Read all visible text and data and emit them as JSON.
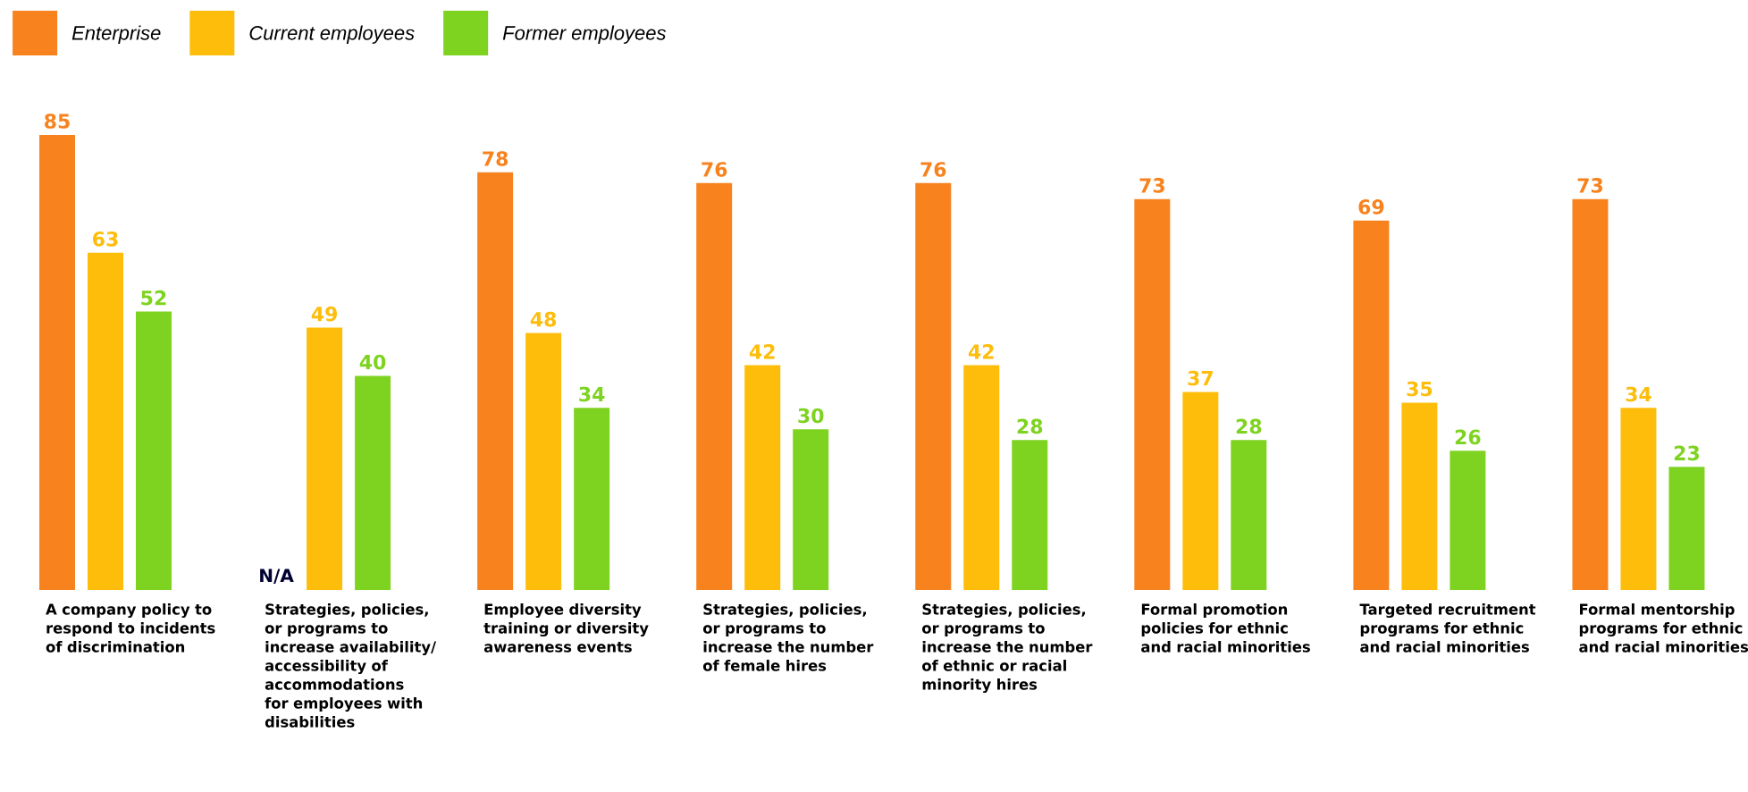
{
  "chart_data": {
    "type": "bar",
    "categories": [
      "A company policy to respond to incidents of discrimination",
      "Strategies, policies, or programs to increase availability/ accessibility of accommodations for employees with disabilities",
      "Employee diversity training or diversity awareness events",
      "Strategies, policies, or programs to increase the number of female hires",
      "Strategies, policies, or programs to increase the number of ethnic or racial minority hires",
      "Formal promotion policies for ethnic and racial minorities",
      "Targeted recruitment programs for ethnic and racial minorities",
      "Formal mentorship programs for ethnic and racial minorities"
    ],
    "series": [
      {
        "name": "Enterprise",
        "color": "#f7821e",
        "values": [
          85,
          null,
          78,
          76,
          76,
          73,
          69,
          73
        ],
        "value_labels": [
          "85",
          "N/A",
          "78",
          "76",
          "76",
          "73",
          "69",
          "73"
        ]
      },
      {
        "name": "Current employees",
        "color": "#fdbd0a",
        "values": [
          63,
          49,
          48,
          42,
          42,
          37,
          35,
          34
        ],
        "value_labels": [
          "63",
          "49",
          "48",
          "42",
          "42",
          "37",
          "35",
          "34"
        ]
      },
      {
        "name": "Former employees",
        "color": "#7ed321",
        "values": [
          52,
          40,
          34,
          30,
          28,
          28,
          26,
          23
        ],
        "value_labels": [
          "52",
          "40",
          "34",
          "30",
          "28",
          "28",
          "26",
          "23"
        ]
      }
    ],
    "legend": "top left"
  }
}
